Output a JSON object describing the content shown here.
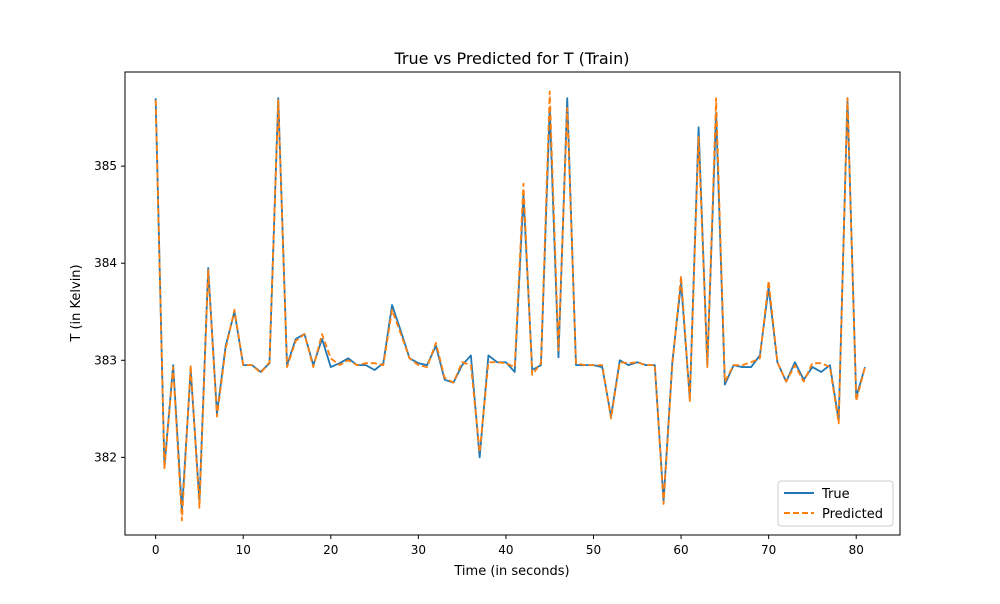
{
  "chart_data": {
    "type": "line",
    "title": "True vs Predicted for T (Train)",
    "xlabel": "Time (in seconds)",
    "ylabel": "T (in Kelvin)",
    "xlim": [
      -3.5,
      85
    ],
    "ylim": [
      381.2,
      385.97
    ],
    "xticks": [
      0,
      10,
      20,
      30,
      40,
      50,
      60,
      70,
      80
    ],
    "yticks": [
      382,
      383,
      384,
      385
    ],
    "grid": false,
    "legend_position": "lower-right",
    "x": [
      0,
      1,
      2,
      3,
      4,
      5,
      6,
      7,
      8,
      9,
      10,
      11,
      12,
      13,
      14,
      15,
      16,
      17,
      18,
      19,
      20,
      21,
      22,
      23,
      24,
      25,
      26,
      27,
      28,
      29,
      30,
      31,
      32,
      33,
      34,
      35,
      36,
      37,
      38,
      39,
      40,
      41,
      42,
      43,
      44,
      45,
      46,
      47,
      48,
      49,
      50,
      51,
      52,
      53,
      54,
      55,
      56,
      57,
      58,
      59,
      60,
      61,
      62,
      63,
      64,
      65,
      66,
      67,
      68,
      69,
      70,
      71,
      72,
      73,
      74,
      75,
      76,
      77,
      78,
      79,
      80,
      81
    ],
    "series": [
      {
        "name": "True",
        "color": "#1f77b4",
        "style": "solid",
        "values": [
          385.7,
          381.9,
          382.95,
          381.45,
          382.9,
          381.55,
          383.95,
          382.45,
          383.15,
          383.5,
          382.95,
          382.95,
          382.88,
          382.97,
          385.7,
          382.95,
          383.22,
          383.27,
          382.95,
          383.22,
          382.93,
          382.97,
          383.02,
          382.95,
          382.95,
          382.9,
          382.97,
          383.57,
          383.3,
          383.02,
          382.97,
          382.95,
          383.15,
          382.8,
          382.77,
          382.95,
          383.05,
          382.0,
          383.05,
          382.98,
          382.98,
          382.88,
          384.7,
          382.9,
          382.95,
          385.6,
          383.03,
          385.7,
          382.95,
          382.95,
          382.95,
          382.93,
          382.42,
          383.0,
          382.95,
          382.98,
          382.95,
          382.95,
          381.55,
          382.98,
          383.8,
          382.6,
          385.4,
          382.95,
          385.55,
          382.75,
          382.95,
          382.93,
          382.93,
          383.05,
          383.75,
          382.98,
          382.78,
          382.98,
          382.8,
          382.93,
          382.88,
          382.95,
          382.38,
          385.7,
          382.62,
          382.93
        ]
      },
      {
        "name": "Predicted",
        "color": "#ff7f0e",
        "style": "dashed",
        "values": [
          385.68,
          381.88,
          382.93,
          381.35,
          382.95,
          381.48,
          383.93,
          382.42,
          383.12,
          383.52,
          382.95,
          382.95,
          382.87,
          382.98,
          385.68,
          382.93,
          383.2,
          383.27,
          382.93,
          383.27,
          383.02,
          382.95,
          383.0,
          382.95,
          382.97,
          382.97,
          382.95,
          383.52,
          383.27,
          383.02,
          382.95,
          382.93,
          383.18,
          382.82,
          382.77,
          382.98,
          382.95,
          382.05,
          382.98,
          382.98,
          382.97,
          382.93,
          384.82,
          382.85,
          382.97,
          385.77,
          383.1,
          385.6,
          382.97,
          382.95,
          382.95,
          382.95,
          382.4,
          382.98,
          382.97,
          382.98,
          382.95,
          382.95,
          381.52,
          382.95,
          383.87,
          382.58,
          385.3,
          382.93,
          385.7,
          382.78,
          382.95,
          382.95,
          382.98,
          383.02,
          383.82,
          382.98,
          382.78,
          382.95,
          382.78,
          382.97,
          382.97,
          382.93,
          382.35,
          385.7,
          382.58,
          382.93
        ]
      }
    ]
  }
}
